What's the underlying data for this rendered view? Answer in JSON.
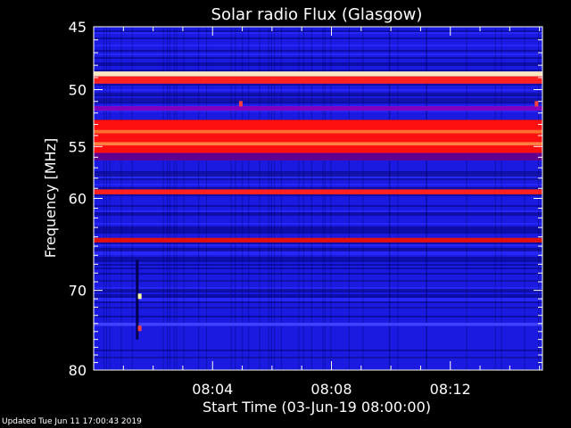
{
  "chart_data": {
    "type": "heatmap",
    "title": "Solar radio Flux (Glasgow)",
    "xlabel": "Start Time (03-Jun-19 08:00:00)",
    "ylabel": "Frequency [MHz]",
    "x_range_minutes": [
      0,
      15.1
    ],
    "y_range_mhz": [
      45,
      80
    ],
    "y_log_scale": true,
    "x_ticks": [
      {
        "minute": 4,
        "label": "08:04"
      },
      {
        "minute": 8,
        "label": "08:08"
      },
      {
        "minute": 12,
        "label": "08:12"
      }
    ],
    "y_ticks": [
      {
        "value": 45,
        "label": "45"
      },
      {
        "value": 50,
        "label": "50"
      },
      {
        "value": 55,
        "label": "55"
      },
      {
        "value": 60,
        "label": "60"
      },
      {
        "value": 70,
        "label": "70"
      },
      {
        "value": 80,
        "label": "80"
      }
    ],
    "background_color": "#1a1ae0",
    "bands": [
      {
        "from_mhz": 48.5,
        "to_mhz": 48.9,
        "color": "#ffe8c0",
        "intensity": "very high"
      },
      {
        "from_mhz": 48.9,
        "to_mhz": 49.5,
        "color": "#ff2020",
        "intensity": "high"
      },
      {
        "from_mhz": 51.4,
        "to_mhz": 51.8,
        "color": "#8000c0",
        "intensity": "medium"
      },
      {
        "from_mhz": 52.6,
        "to_mhz": 55.6,
        "color": "#ff1010",
        "intensity": "high"
      },
      {
        "from_mhz": 53.5,
        "to_mhz": 53.8,
        "color": "#ff7030",
        "intensity": "very high"
      },
      {
        "from_mhz": 54.6,
        "to_mhz": 54.9,
        "color": "#ff8040",
        "intensity": "very high"
      },
      {
        "from_mhz": 55.6,
        "to_mhz": 56.3,
        "color": "#600090",
        "intensity": "medium"
      },
      {
        "from_mhz": 59.1,
        "to_mhz": 59.6,
        "color": "#ff2020",
        "intensity": "high"
      },
      {
        "from_mhz": 64.1,
        "to_mhz": 64.6,
        "color": "#e01010",
        "intensity": "high"
      },
      {
        "from_mhz": 73.9,
        "to_mhz": 74.3,
        "color": "#4040ff",
        "intensity": "low"
      }
    ],
    "spots": [
      {
        "minute": 1.55,
        "mhz": 70.7,
        "color": "#ffffa0"
      },
      {
        "minute": 4.95,
        "mhz": 51.2,
        "color": "#ff4040"
      },
      {
        "minute": 14.9,
        "mhz": 51.2,
        "color": "#ff4040"
      },
      {
        "minute": 1.55,
        "mhz": 74.6,
        "color": "#ff4040"
      }
    ],
    "vertical_streak": {
      "minute": 1.45,
      "from_mhz": 66.5,
      "to_mhz": 76.0,
      "color": "#000050"
    }
  },
  "footer": {
    "updated": "Updated Tue Jun 11 17:00:43 2019"
  }
}
